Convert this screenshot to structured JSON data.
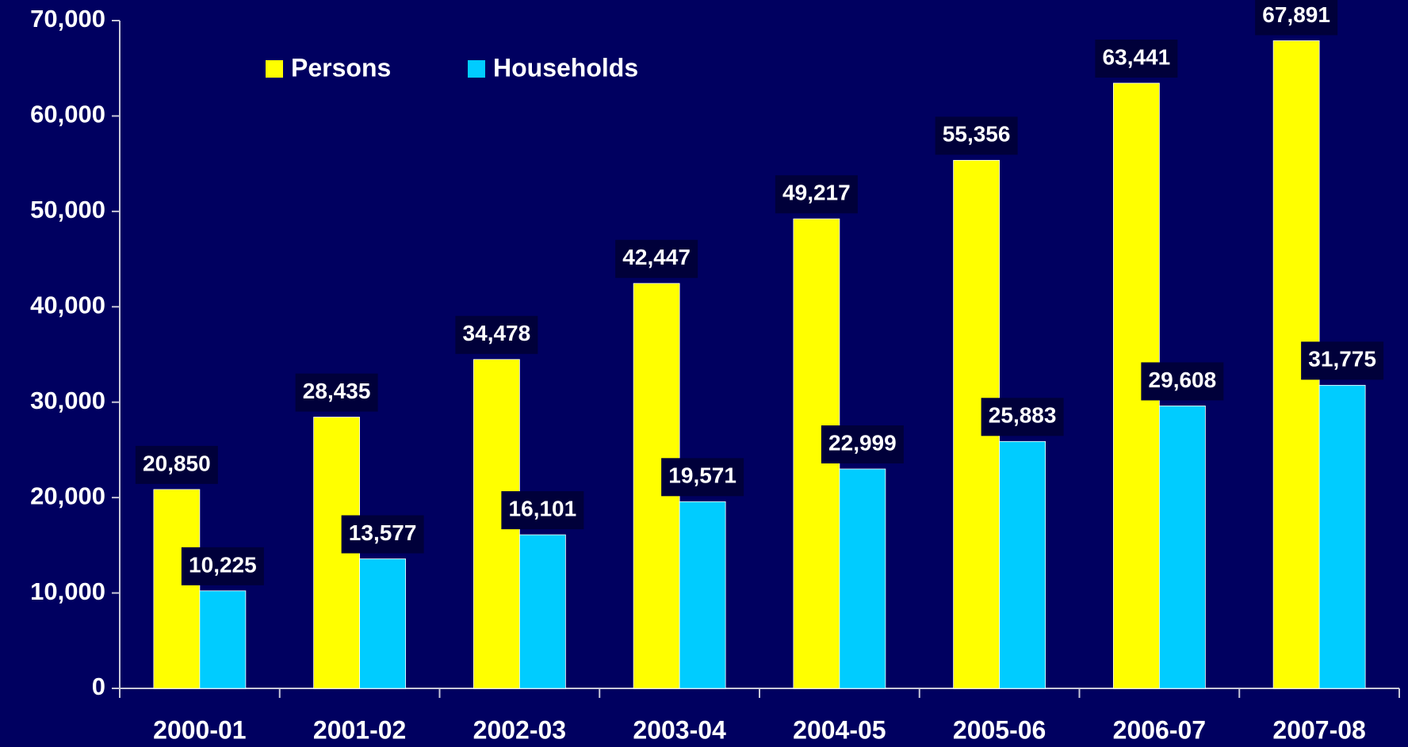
{
  "chart_data": {
    "type": "bar",
    "categories": [
      "2000-01",
      "2001-02",
      "2002-03",
      "2003-04",
      "2004-05",
      "2005-06",
      "2006-07",
      "2007-08"
    ],
    "series": [
      {
        "name": "Persons",
        "color": "#ffff00",
        "values": [
          20850,
          28435,
          34478,
          42447,
          49217,
          55356,
          63441,
          67891
        ],
        "value_labels": [
          "20,850",
          "28,435",
          "34,478",
          "42,447",
          "49,217",
          "55,356",
          "63,441",
          "67,891"
        ]
      },
      {
        "name": "Households",
        "color": "#00ccff",
        "values": [
          10225,
          13577,
          16101,
          19571,
          22999,
          25883,
          29608,
          31775
        ],
        "value_labels": [
          "10,225",
          "13,577",
          "16,101",
          "19,571",
          "22,999",
          "25,883",
          "29,608",
          "31,775"
        ]
      }
    ],
    "ylim": [
      0,
      70000
    ],
    "yticks": [
      0,
      {
        "value": 10000,
        "label": "10,000"
      },
      {
        "value": 20000,
        "label": "20,000"
      },
      {
        "value": 30000,
        "label": "30,000"
      },
      {
        "value": 40000,
        "label": "40,000"
      },
      {
        "value": 50000,
        "label": "50,000"
      },
      {
        "value": 60000,
        "label": "60,000"
      },
      {
        "value": 70000,
        "label": "70,000"
      }
    ],
    "legend": "top-left"
  }
}
